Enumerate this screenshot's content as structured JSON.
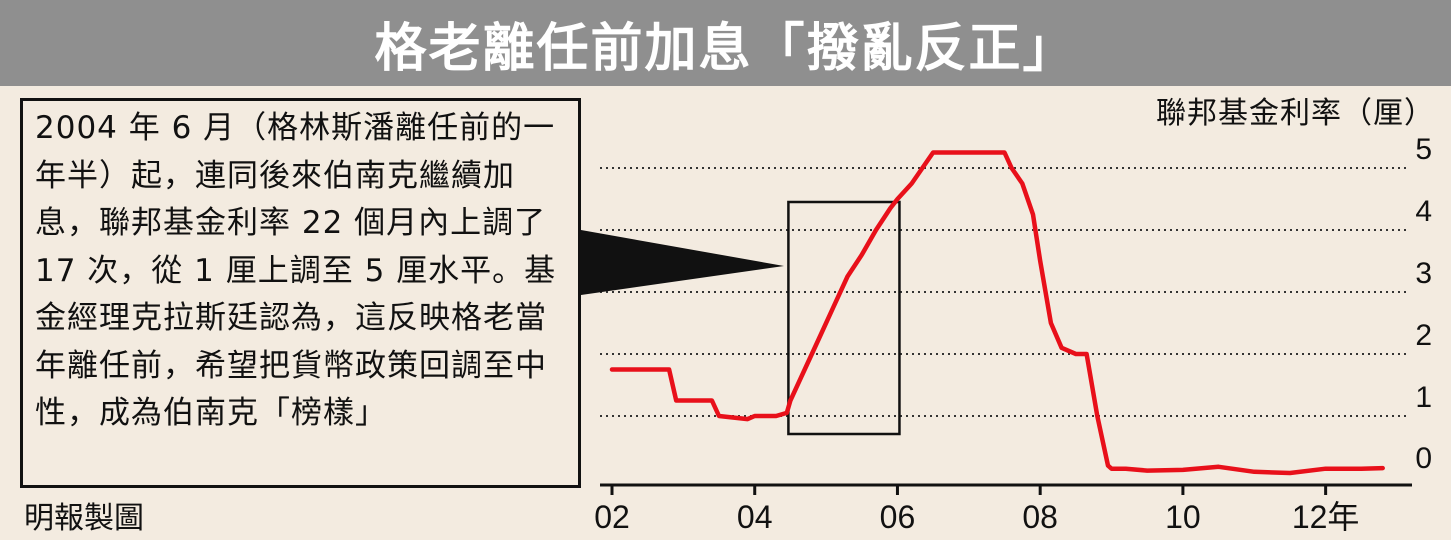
{
  "title": "格老離任前加息「撥亂反正」",
  "annotation": "2004 年 6 月（格林斯潘離任前的一年半）起，連同後來伯南克繼續加息，聯邦基金利率 22 個月內上調了 17 次，從 1 厘上調至 5 厘水平。基金經理克拉斯廷認為，這反映格老當年離任前，希望把貨幣政策回調至中性，成為伯南克「榜樣」",
  "source": "明報製圖",
  "colors": {
    "line": "#e8101a",
    "title_bg": "#8f8f8f",
    "background": "#f3ebe0"
  },
  "chart_data": {
    "type": "line",
    "ylabel": "聯邦基金利率（厘）",
    "ylim": [
      0,
      5
    ],
    "yticks": [
      "0",
      "1",
      "2",
      "3",
      "4",
      "5"
    ],
    "xlim": [
      2002,
      2013
    ],
    "xticks": [
      {
        "value": 2002,
        "label": "02"
      },
      {
        "value": 2004,
        "label": "04"
      },
      {
        "value": 2006,
        "label": "06"
      },
      {
        "value": 2008,
        "label": "08"
      },
      {
        "value": 2010,
        "label": "10"
      },
      {
        "value": 2012,
        "label": "12年"
      }
    ],
    "grid": true,
    "highlight": {
      "x": [
        2004.5,
        2006.0
      ]
    },
    "series": [
      {
        "x": [
          2002.0,
          2002.8,
          2002.9,
          2003.4,
          2003.5,
          2003.9,
          2004.0,
          2004.1,
          2004.3,
          2004.45,
          2004.5,
          2004.7,
          2004.9,
          2005.1,
          2005.3,
          2005.5,
          2005.7,
          2005.9,
          2006.0,
          2006.2,
          2006.5,
          2007.5,
          2007.6,
          2007.75,
          2007.9,
          2008.0,
          2008.15,
          2008.3,
          2008.5,
          2008.65,
          2008.8,
          2008.95,
          2009.0,
          2009.2,
          2009.5,
          2010.0,
          2010.5,
          2011.0,
          2011.5,
          2012.0,
          2012.5,
          2012.8
        ],
        "y": [
          1.75,
          1.75,
          1.25,
          1.25,
          1.0,
          0.95,
          1.0,
          1.0,
          1.0,
          1.05,
          1.25,
          1.75,
          2.25,
          2.75,
          3.25,
          3.6,
          4.0,
          4.35,
          4.5,
          4.75,
          5.25,
          5.25,
          5.0,
          4.75,
          4.25,
          3.5,
          2.5,
          2.1,
          2.0,
          2.0,
          1.0,
          0.2,
          0.15,
          0.15,
          0.12,
          0.13,
          0.18,
          0.1,
          0.08,
          0.15,
          0.15,
          0.16
        ]
      }
    ]
  }
}
